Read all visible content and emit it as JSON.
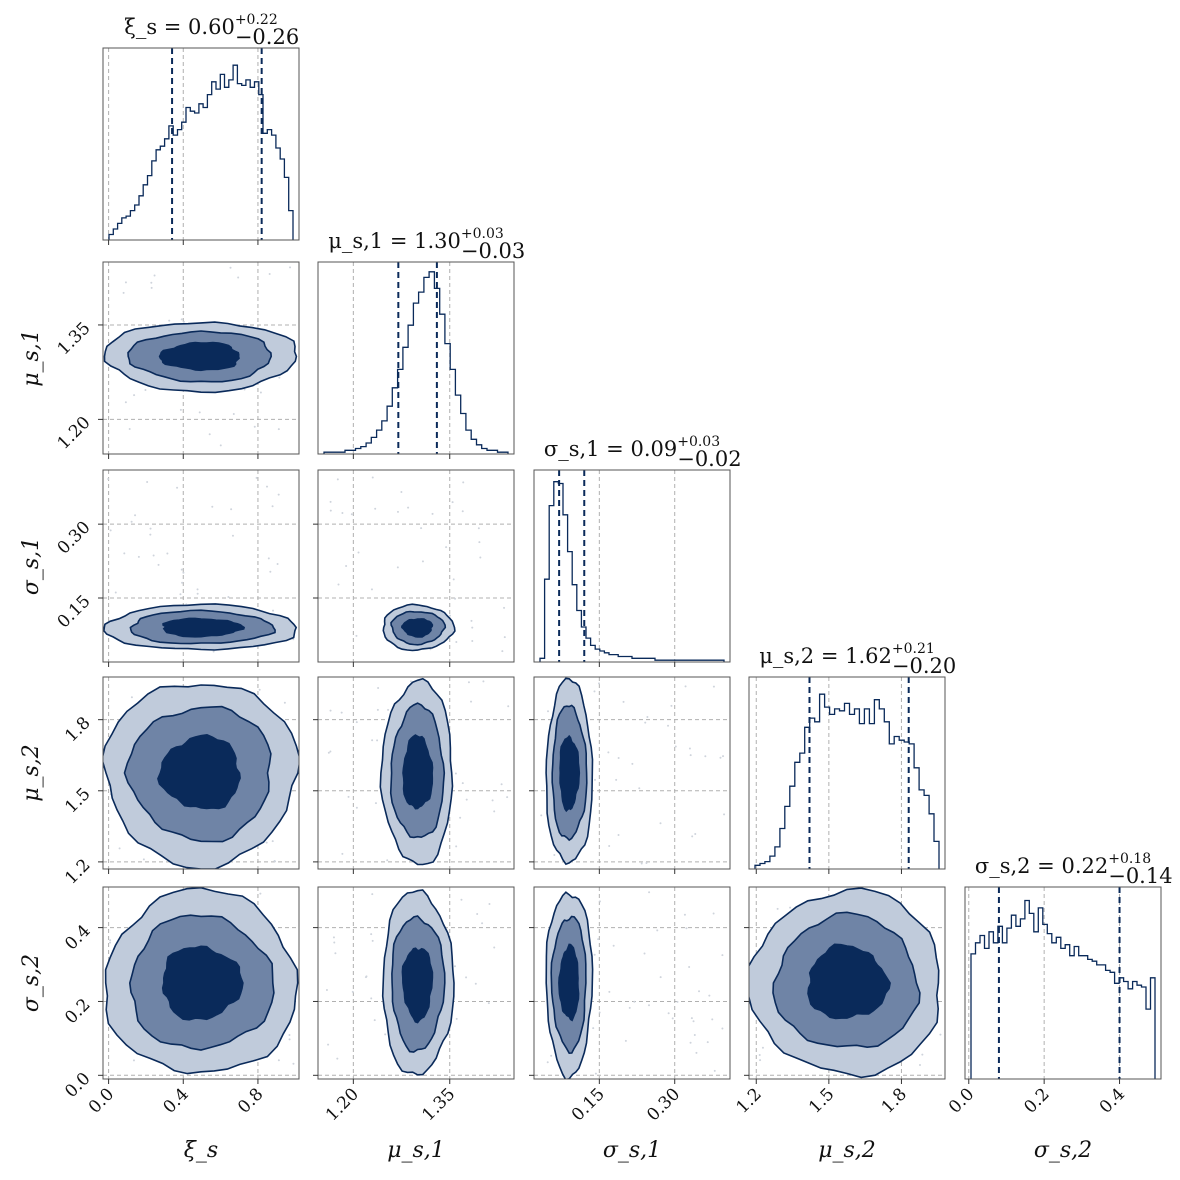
{
  "chart_data": {
    "type": "corner",
    "colors": {
      "line": "#0a2a5a",
      "level_1": "#c0cbdb",
      "level_2": "#6f84a6",
      "level_3": "#0a2a5a",
      "grid": "#b0b0b0"
    },
    "parameters": [
      {
        "label": "ξ_s",
        "title": "ξ_s = 0.60",
        "median": 0.6,
        "upper": "+0.22",
        "lower": "−0.26",
        "range": [
          -0.03,
          1.02
        ],
        "ticks": [
          0.0,
          0.4,
          0.8
        ],
        "tick_labels": [
          "0.0",
          "0.4",
          "0.8"
        ],
        "quantiles": [
          0.34,
          0.82
        ]
      },
      {
        "label": "μ_s,1",
        "title": "μ_s,1 = 1.30",
        "median": 1.3,
        "upper": "+0.03",
        "lower": "−0.03",
        "range": [
          1.145,
          1.45
        ],
        "ticks": [
          1.2,
          1.35
        ],
        "tick_labels": [
          "1.20",
          "1.35"
        ],
        "quantiles": [
          1.27,
          1.33
        ]
      },
      {
        "label": "σ_s,1",
        "title": "σ_s,1 = 0.09",
        "median": 0.09,
        "upper": "+0.03",
        "lower": "−0.02",
        "range": [
          0.02,
          0.41
        ],
        "ticks": [
          0.15,
          0.3
        ],
        "tick_labels": [
          "0.15",
          "0.30"
        ],
        "quantiles": [
          0.07,
          0.12
        ]
      },
      {
        "label": "μ_s,2",
        "title": "μ_s,2 = 1.62",
        "median": 1.62,
        "upper": "+0.21",
        "lower": "−0.20",
        "range": [
          1.17,
          1.98
        ],
        "ticks": [
          1.2,
          1.5,
          1.8
        ],
        "tick_labels": [
          "1.2",
          "1.5",
          "1.8"
        ],
        "quantiles": [
          1.42,
          1.83
        ]
      },
      {
        "label": "σ_s,2",
        "title": "σ_s,2 = 0.22",
        "median": 0.22,
        "upper": "+0.18",
        "lower": "−0.14",
        "range": [
          -0.01,
          0.51
        ],
        "ticks": [
          0.0,
          0.2,
          0.4
        ],
        "tick_labels": [
          "0.0",
          "0.2",
          "0.4"
        ],
        "quantiles": [
          0.08,
          0.4
        ]
      }
    ],
    "histograms": [
      [
        0.03,
        0.06,
        0.09,
        0.12,
        0.13,
        0.16,
        0.19,
        0.24,
        0.3,
        0.35,
        0.43,
        0.49,
        0.51,
        0.55,
        0.62,
        0.57,
        0.6,
        0.64,
        0.72,
        0.7,
        0.69,
        0.74,
        0.72,
        0.79,
        0.86,
        0.82,
        0.9,
        0.83,
        0.87,
        0.95,
        0.85,
        0.84,
        0.87,
        0.83,
        0.86,
        0.79,
        0.58,
        0.6,
        0.57,
        0.5,
        0.44,
        0.34,
        0.16
      ],
      [
        0.01,
        0.01,
        0.01,
        0.01,
        0.02,
        0.02,
        0.03,
        0.04,
        0.06,
        0.09,
        0.13,
        0.18,
        0.26,
        0.36,
        0.46,
        0.58,
        0.7,
        0.82,
        0.88,
        0.96,
        0.99,
        0.9,
        0.76,
        0.6,
        0.46,
        0.32,
        0.22,
        0.13,
        0.08,
        0.05,
        0.03,
        0.02,
        0.02,
        0.01,
        0.01
      ],
      [
        0.02,
        0.45,
        0.85,
        0.98,
        0.97,
        0.8,
        0.6,
        0.42,
        0.28,
        0.19,
        0.13,
        0.09,
        0.07,
        0.06,
        0.05,
        0.04,
        0.04,
        0.03,
        0.03,
        0.03,
        0.02,
        0.02,
        0.02,
        0.02,
        0.02,
        0.01,
        0.01,
        0.01,
        0.01,
        0.01,
        0.01,
        0.01,
        0.01,
        0.01,
        0.01,
        0.01,
        0.01,
        0.01,
        0.01,
        0.01
      ],
      [
        0.02,
        0.03,
        0.04,
        0.07,
        0.12,
        0.22,
        0.34,
        0.45,
        0.58,
        0.63,
        0.77,
        0.82,
        0.8,
        0.95,
        0.88,
        0.84,
        0.87,
        0.86,
        0.9,
        0.84,
        0.87,
        0.79,
        0.87,
        0.79,
        0.92,
        0.87,
        0.8,
        0.68,
        0.72,
        0.7,
        0.69,
        0.68,
        0.55,
        0.43,
        0.4,
        0.3,
        0.15
      ],
      [
        0.68,
        0.74,
        0.78,
        0.71,
        0.8,
        0.74,
        0.83,
        0.74,
        0.82,
        0.89,
        0.83,
        0.87,
        0.97,
        0.9,
        0.8,
        0.93,
        0.84,
        0.79,
        0.74,
        0.77,
        0.71,
        0.73,
        0.67,
        0.72,
        0.67,
        0.67,
        0.65,
        0.64,
        0.62,
        0.62,
        0.59,
        0.58,
        0.52,
        0.55,
        0.53,
        0.49,
        0.53,
        0.51,
        0.5,
        0.38,
        0.55
      ]
    ],
    "levels": [
      "outer",
      "middle",
      "inner"
    ]
  }
}
